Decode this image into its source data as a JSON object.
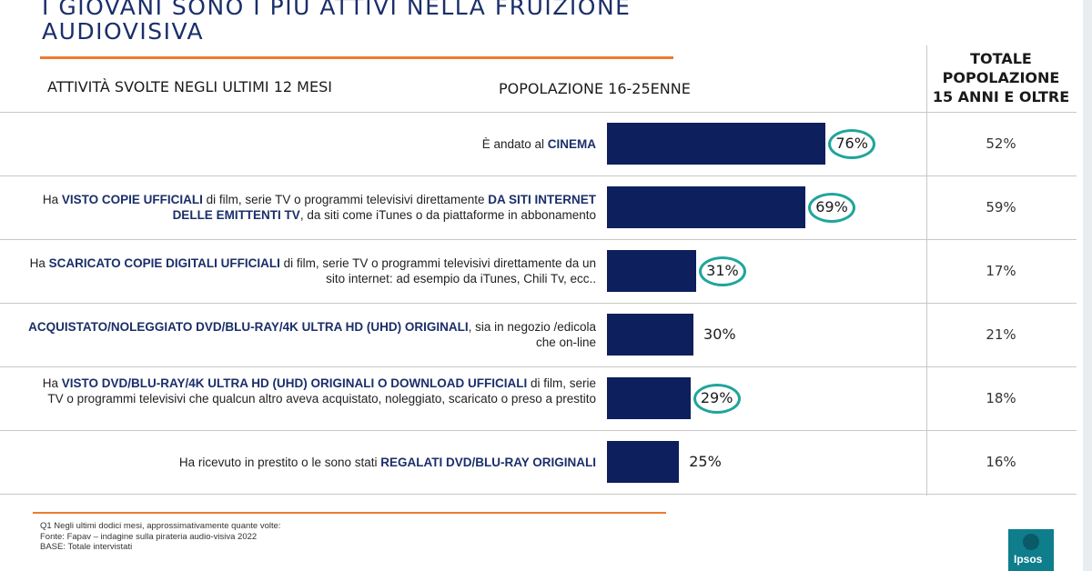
{
  "title": {
    "line1": "I GIOVANI SONO I PIÙ ATTIVI NELLA FRUIZIONE",
    "line2": "AUDIOVISIVA"
  },
  "headers": {
    "activities": "ATTIVITÀ SVOLTE NEGLI ULTIMI 12 MESI",
    "population": "POPOLAZIONE 16-25ENNE",
    "total_line1": "TOTALE",
    "total_line2": "POPOLAZIONE",
    "total_line3": "15 ANNI E OLTRE"
  },
  "colors": {
    "bar": "#0d1f5c",
    "highlight_ring": "#1fa59b",
    "accent_line": "#f07a2c",
    "title": "#1a2f6a"
  },
  "chart_data": {
    "type": "bar",
    "orientation": "horizontal",
    "title": "",
    "xlabel": "",
    "ylabel": "",
    "xlim": [
      0,
      100
    ],
    "unit": "%",
    "grid": false,
    "categories": [
      "È andato al CINEMA",
      "Ha VISTO COPIE UFFICIALI di film, serie TV o programmi televisivi direttamente DA SITI INTERNET DELLE EMITTENTI TV, da siti come iTunes o da piattaforme in abbonamento",
      "Ha SCARICATO COPIE DIGITALI UFFICIALI di film, serie TV o programmi televisivi direttamente da un sito internet: ad esempio da iTunes, Chili Tv, ecc..",
      "ACQUISTATO/NOLEGGIATO DVD/BLU-RAY/4K ULTRA HD (UHD) ORIGINALI, sia in negozio /edicola che on-line",
      "Ha VISTO DVD/BLU-RAY/4K ULTRA HD (UHD) ORIGINALI O DOWNLOAD UFFICIALI di film, serie TV o programmi televisivi che qualcun altro aveva acquistato, noleggiato, scaricato o preso a prestito",
      "Ha ricevuto in prestito o le sono stati REGALATI DVD/BLU-RAY ORIGINALI"
    ],
    "series": [
      {
        "name": "POPOLAZIONE 16-25ENNE",
        "values": [
          76,
          69,
          31,
          30,
          29,
          25
        ]
      },
      {
        "name": "TOTALE POPOLAZIONE 15 ANNI E OLTRE",
        "values": [
          52,
          59,
          17,
          21,
          18,
          16
        ]
      }
    ],
    "highlighted": [
      true,
      true,
      true,
      false,
      true,
      false
    ],
    "rows": [
      {
        "label_parts": [
          {
            "t": "È andato al ",
            "b": false
          },
          {
            "t": "CINEMA",
            "b": true
          }
        ],
        "value": 76,
        "value_label": "76%",
        "total_label": "52%",
        "highlighted": true
      },
      {
        "label_parts": [
          {
            "t": "Ha ",
            "b": false
          },
          {
            "t": "VISTO COPIE UFFICIALI",
            "b": true
          },
          {
            "t": " di film, serie TV o programmi televisivi direttamente ",
            "b": false
          },
          {
            "t": "DA SITI INTERNET DELLE EMITTENTI TV",
            "b": true
          },
          {
            "t": ", da siti come iTunes o da piattaforme in abbonamento",
            "b": false
          }
        ],
        "value": 69,
        "value_label": "69%",
        "total_label": "59%",
        "highlighted": true
      },
      {
        "label_parts": [
          {
            "t": "Ha ",
            "b": false
          },
          {
            "t": "SCARICATO COPIE DIGITALI UFFICIALI",
            "b": true
          },
          {
            "t": " di film, serie TV o programmi televisivi direttamente da un sito internet: ad esempio da iTunes, Chili Tv, ecc..",
            "b": false
          }
        ],
        "value": 31,
        "value_label": "31%",
        "total_label": "17%",
        "highlighted": true
      },
      {
        "label_parts": [
          {
            "t": "ACQUISTATO/NOLEGGIATO DVD/BLU-RAY/4K ULTRA HD (UHD) ORIGINALI",
            "b": true
          },
          {
            "t": ", sia in negozio /edicola che on-line",
            "b": false
          }
        ],
        "value": 30,
        "value_label": "30%",
        "total_label": "21%",
        "highlighted": false
      },
      {
        "label_parts": [
          {
            "t": "Ha ",
            "b": false
          },
          {
            "t": "VISTO DVD/BLU-RAY/4K ULTRA HD (UHD) ORIGINALI O DOWNLOAD UFFICIALI",
            "b": true
          },
          {
            "t": " di film, serie TV o programmi televisivi che qualcun altro aveva acquistato, noleggiato, scaricato o preso a prestito",
            "b": false
          }
        ],
        "value": 29,
        "value_label": "29%",
        "total_label": "18%",
        "highlighted": true
      },
      {
        "label_parts": [
          {
            "t": "Ha ricevuto in prestito o le sono stati ",
            "b": false
          },
          {
            "t": "REGALATI DVD/BLU-RAY ORIGINALI",
            "b": true
          }
        ],
        "value": 25,
        "value_label": "25%",
        "total_label": "16%",
        "highlighted": false
      }
    ]
  },
  "footnotes": {
    "q1": "Q1 Negli ultimi dodici mesi, approssimativamente quante volte:",
    "source": "Fonte: Fapav – indagine sulla pirateria audio-visiva 2022",
    "base": "BASE: Totale intervistati"
  },
  "logo": {
    "text": "Ipsos"
  }
}
